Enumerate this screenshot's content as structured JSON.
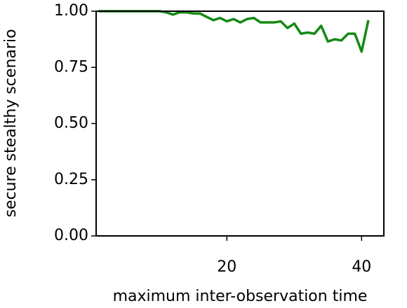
{
  "chart_data": {
    "type": "line",
    "xlabel": "maximum inter-observation time",
    "ylabel": "secure stealthy scenario",
    "x": [
      1,
      2,
      3,
      4,
      5,
      6,
      7,
      8,
      9,
      10,
      11,
      12,
      13,
      14,
      15,
      16,
      17,
      18,
      19,
      20,
      21,
      22,
      23,
      24,
      25,
      26,
      27,
      28,
      29,
      30,
      31,
      32,
      33,
      34,
      35,
      36,
      37,
      38,
      39,
      40,
      41
    ],
    "series": [
      {
        "color": "#138a13",
        "values": [
          1,
          1,
          1,
          1,
          1,
          1,
          1,
          1,
          1,
          1,
          0.995,
          0.985,
          0.995,
          0.995,
          0.99,
          0.99,
          0.975,
          0.96,
          0.97,
          0.955,
          0.965,
          0.95,
          0.965,
          0.97,
          0.95,
          0.95,
          0.95,
          0.955,
          0.925,
          0.945,
          0.9,
          0.905,
          0.9,
          0.935,
          0.865,
          0.875,
          0.87,
          0.9,
          0.9,
          0.82,
          0.96
        ]
      }
    ],
    "xlim": [
      0.6,
      43.3
    ],
    "xticks": [
      20,
      40
    ],
    "ylim": [
      0,
      1
    ],
    "yticks": [
      {
        "value": 0,
        "label": "0.00"
      },
      {
        "value": 0.25,
        "label": "0.25"
      },
      {
        "value": 0.5,
        "label": "0.50"
      },
      {
        "value": 0.75,
        "label": "0.75"
      },
      {
        "value": 1,
        "label": "1.00"
      }
    ]
  }
}
